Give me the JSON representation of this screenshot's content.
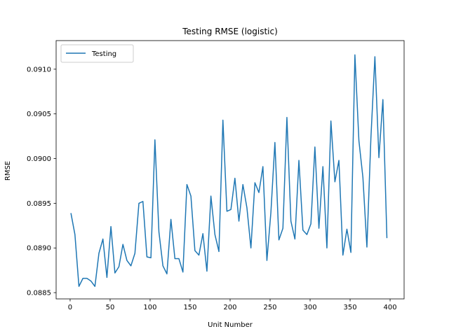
{
  "chart_data": {
    "type": "line",
    "title": "Testing RMSE (logistic)",
    "xlabel": "Unit Number",
    "ylabel": "RMSE",
    "xlim": [
      -17.5,
      417.5
    ],
    "ylim": [
      0.08843,
      0.09132
    ],
    "xticks": [
      0,
      50,
      100,
      150,
      200,
      250,
      300,
      350,
      400
    ],
    "xtick_labels": [
      "0",
      "50",
      "100",
      "150",
      "200",
      "250",
      "300",
      "350",
      "400"
    ],
    "yticks": [
      0.0885,
      0.089,
      0.0895,
      0.09,
      0.0905,
      0.091
    ],
    "ytick_labels": [
      "0.0885",
      "0.0890",
      "0.0895",
      "0.0900",
      "0.0905",
      "0.0910"
    ],
    "grid": false,
    "legend": {
      "position": "upper-left",
      "entries": [
        "Testing"
      ]
    },
    "colors": {
      "series": "#1f77b4",
      "axes": "#000000",
      "legend_border": "#cccccc"
    },
    "series": [
      {
        "name": "Testing",
        "x": [
          1,
          6,
          11,
          16,
          21,
          26,
          31,
          36,
          41,
          46,
          51,
          56,
          61,
          66,
          71,
          76,
          81,
          86,
          91,
          96,
          101,
          106,
          111,
          116,
          121,
          126,
          131,
          136,
          141,
          146,
          151,
          156,
          161,
          166,
          171,
          176,
          181,
          186,
          191,
          196,
          201,
          206,
          211,
          216,
          221,
          226,
          231,
          236,
          241,
          246,
          251,
          256,
          261,
          266,
          271,
          276,
          281,
          286,
          291,
          296,
          301,
          306,
          311,
          316,
          321,
          326,
          331,
          336,
          341,
          346,
          351,
          356,
          361,
          366,
          371,
          376,
          381,
          386,
          391,
          396
        ],
        "y": [
          0.08939,
          0.08915,
          0.08857,
          0.08866,
          0.08866,
          0.08863,
          0.08857,
          0.08894,
          0.0891,
          0.08867,
          0.08924,
          0.08872,
          0.08879,
          0.08904,
          0.08886,
          0.0888,
          0.08894,
          0.0895,
          0.08952,
          0.0889,
          0.08889,
          0.09021,
          0.08918,
          0.0888,
          0.08871,
          0.08932,
          0.08888,
          0.08888,
          0.08873,
          0.08971,
          0.08958,
          0.08897,
          0.08892,
          0.08916,
          0.08874,
          0.08958,
          0.08915,
          0.08896,
          0.09043,
          0.08941,
          0.08943,
          0.08978,
          0.0893,
          0.08971,
          0.08945,
          0.089,
          0.08973,
          0.08962,
          0.08991,
          0.08886,
          0.0894,
          0.09018,
          0.08909,
          0.08922,
          0.09046,
          0.0893,
          0.0891,
          0.08998,
          0.0892,
          0.08915,
          0.08927,
          0.09013,
          0.08922,
          0.08991,
          0.089,
          0.09042,
          0.08974,
          0.08998,
          0.08892,
          0.08921,
          0.08895,
          0.09116,
          0.0902,
          0.08979,
          0.08901,
          0.09023,
          0.09114,
          0.09001,
          0.09066,
          0.08911
        ]
      }
    ]
  }
}
